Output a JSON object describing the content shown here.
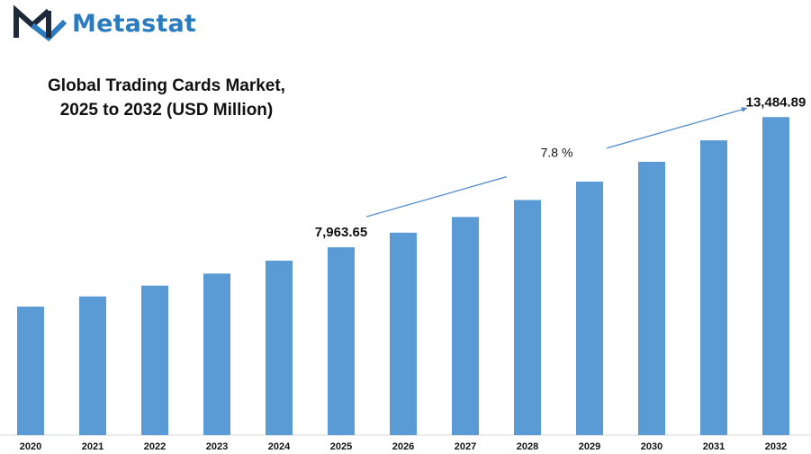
{
  "brand": {
    "name": "Metastat",
    "logo_icon": "metastat-m-logo-icon"
  },
  "colors": {
    "bar": "#5b9bd5",
    "brand": "#2b7bbf",
    "trend_line": "#4a86c8",
    "text": "#111111"
  },
  "chart_data": {
    "type": "bar",
    "title": [
      "Global Trading Cards Market,",
      "2025 to 2032 (USD Million)"
    ],
    "xlabel": "",
    "ylabel": "",
    "categories": [
      "2020",
      "2021",
      "2022",
      "2023",
      "2024",
      "2025",
      "2026",
      "2027",
      "2028",
      "2029",
      "2030",
      "2031",
      "2032"
    ],
    "values": [
      5450,
      5880,
      6340,
      6850,
      7400,
      7963.65,
      8585,
      9250,
      9970,
      10750,
      11590,
      12500,
      13484.89
    ],
    "ylim": [
      0,
      13800
    ],
    "grid": false,
    "legend": "none",
    "data_labels": [
      {
        "category": "2025",
        "text": "7,963.65"
      },
      {
        "category": "2032",
        "text": "13,484.89"
      }
    ],
    "annotation": {
      "text": "7.8 %",
      "from": "2025",
      "to": "2032",
      "meaning": "CAGR trend arrow"
    }
  }
}
